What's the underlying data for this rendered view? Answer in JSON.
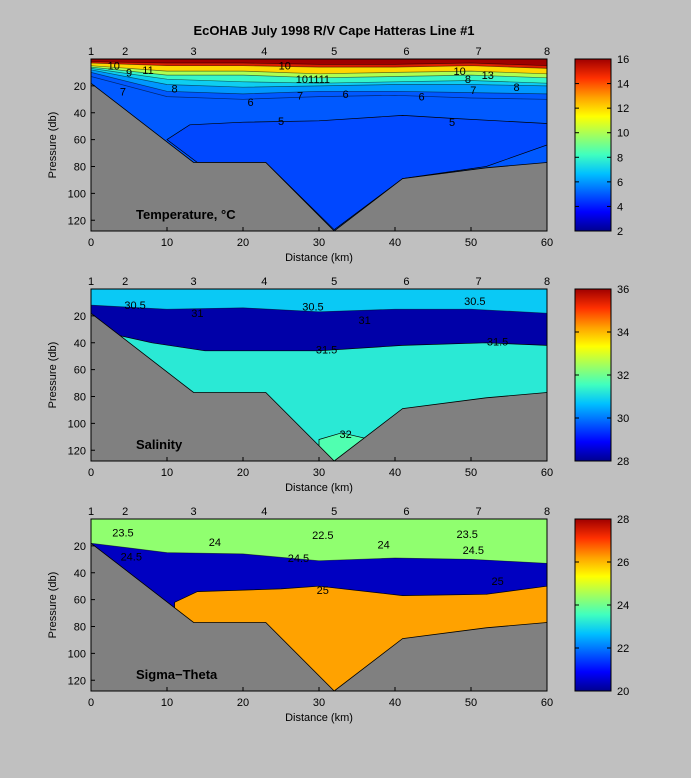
{
  "title": "EcOHAB   July 1998   R/V Cape Hatteras   Line #1",
  "colors": {
    "background": "#c0c0c0",
    "bathymetry": "#808080",
    "colormap": [
      "#00008f",
      "#0000ff",
      "#0060ff",
      "#00c0ff",
      "#40ffbf",
      "#a0ff60",
      "#ffff00",
      "#ffa000",
      "#ff3000",
      "#9f0000"
    ]
  },
  "chart_data": [
    {
      "type": "heatmap",
      "panel_label": "Temperature, °C",
      "xlabel": "Distance (km)",
      "ylabel": "Pressure (db)",
      "xlim": [
        0,
        60
      ],
      "ylim": [
        128,
        0
      ],
      "x_ticks": [
        "0",
        "10",
        "20",
        "30",
        "40",
        "50",
        "60"
      ],
      "y_ticks": [
        "20",
        "40",
        "60",
        "80",
        "100",
        "120"
      ],
      "stations": [
        {
          "label": "1",
          "x": 0
        },
        {
          "label": "2",
          "x": 4.5
        },
        {
          "label": "3",
          "x": 13.5
        },
        {
          "label": "4",
          "x": 22.8
        },
        {
          "label": "5",
          "x": 32
        },
        {
          "label": "6",
          "x": 41.5
        },
        {
          "label": "7",
          "x": 51
        },
        {
          "label": "8",
          "x": 60
        }
      ],
      "colorbar": {
        "min": 2,
        "max": 16,
        "ticks": [
          "2",
          "4",
          "6",
          "8",
          "10",
          "12",
          "14",
          "16"
        ]
      },
      "layers": [
        {
          "value": 5,
          "depth": [
            [
              0,
              13
            ],
            [
              10,
              28
            ],
            [
              20,
              30
            ],
            [
              30,
              28
            ],
            [
              40,
              27
            ],
            [
              50,
              29
            ],
            [
              60,
              30
            ]
          ]
        },
        {
          "value": 6,
          "depth": [
            [
              0,
              10
            ],
            [
              10,
              24
            ],
            [
              20,
              26
            ],
            [
              30,
              24
            ],
            [
              40,
              24
            ],
            [
              50,
              25
            ],
            [
              60,
              26
            ]
          ]
        },
        {
          "value": 7,
          "depth": [
            [
              0,
              8
            ],
            [
              10,
              19
            ],
            [
              20,
              21
            ],
            [
              30,
              20
            ],
            [
              40,
              19
            ],
            [
              50,
              19
            ],
            [
              60,
              20
            ]
          ]
        },
        {
          "value": 8,
          "depth": [
            [
              0,
              7
            ],
            [
              10,
              15
            ],
            [
              20,
              17
            ],
            [
              30,
              18
            ],
            [
              40,
              17
            ],
            [
              50,
              16
            ],
            [
              60,
              18
            ]
          ]
        },
        {
          "value": 10,
          "depth": [
            [
              0,
              6
            ],
            [
              10,
              12
            ],
            [
              20,
              12
            ],
            [
              30,
              14
            ],
            [
              40,
              13
            ],
            [
              50,
              12
            ],
            [
              60,
              14
            ]
          ]
        },
        {
          "value": 12,
          "depth": [
            [
              0,
              5
            ],
            [
              10,
              9
            ],
            [
              20,
              9
            ],
            [
              30,
              11
            ],
            [
              40,
              10
            ],
            [
              50,
              9
            ],
            [
              60,
              11
            ]
          ]
        },
        {
          "value": 15,
          "depth": [
            [
              0,
              3
            ],
            [
              10,
              5
            ],
            [
              20,
              5
            ],
            [
              30,
              6
            ],
            [
              40,
              6
            ],
            [
              50,
              5
            ],
            [
              60,
              7
            ]
          ]
        },
        {
          "value": 16,
          "depth": [
            [
              0,
              2
            ],
            [
              10,
              3
            ],
            [
              20,
              3
            ],
            [
              30,
              4
            ],
            [
              40,
              4
            ],
            [
              50,
              3
            ],
            [
              60,
              5
            ]
          ]
        }
      ],
      "deep": [
        {
          "value": 4.7,
          "poly": [
            [
              10,
              60
            ],
            [
              13,
              49
            ],
            [
              20,
              47
            ],
            [
              30,
              46
            ],
            [
              41,
              42
            ],
            [
              47,
              44
            ],
            [
              60,
              48
            ],
            [
              60,
              64
            ],
            [
              52,
              80
            ],
            [
              41,
              89
            ],
            [
              32,
              127
            ],
            [
              23,
              77
            ],
            [
              14,
              77
            ]
          ]
        }
      ],
      "labels": [
        {
          "text": "10",
          "x": 3,
          "y": 5
        },
        {
          "text": "9",
          "x": 5,
          "y": 10
        },
        {
          "text": "11",
          "x": 7.5,
          "y": 8
        },
        {
          "text": "7",
          "x": 4.2,
          "y": 24
        },
        {
          "text": "8",
          "x": 11,
          "y": 22
        },
        {
          "text": "6",
          "x": 21,
          "y": 32
        },
        {
          "text": "10",
          "x": 25.5,
          "y": 5
        },
        {
          "text": "101111",
          "x": 29.2,
          "y": 15
        },
        {
          "text": "7",
          "x": 27.5,
          "y": 27
        },
        {
          "text": "6",
          "x": 33.5,
          "y": 26
        },
        {
          "text": "5",
          "x": 25,
          "y": 46
        },
        {
          "text": "6",
          "x": 43.5,
          "y": 28
        },
        {
          "text": "10",
          "x": 48.5,
          "y": 9
        },
        {
          "text": "8",
          "x": 49.6,
          "y": 15
        },
        {
          "text": "13",
          "x": 52.2,
          "y": 12
        },
        {
          "text": "7",
          "x": 50.3,
          "y": 23
        },
        {
          "text": "8",
          "x": 56,
          "y": 21
        },
        {
          "text": "5",
          "x": 47.5,
          "y": 47
        }
      ]
    },
    {
      "type": "heatmap",
      "panel_label": "Salinity",
      "xlabel": "Distance (km)",
      "ylabel": "Pressure (db)",
      "xlim": [
        0,
        60
      ],
      "ylim": [
        128,
        0
      ],
      "x_ticks": [
        "0",
        "10",
        "20",
        "30",
        "40",
        "50",
        "60"
      ],
      "y_ticks": [
        "20",
        "40",
        "60",
        "80",
        "100",
        "120"
      ],
      "stations": [
        {
          "label": "1",
          "x": 0
        },
        {
          "label": "2",
          "x": 4.5
        },
        {
          "label": "3",
          "x": 13.5
        },
        {
          "label": "4",
          "x": 22.8
        },
        {
          "label": "5",
          "x": 32
        },
        {
          "label": "6",
          "x": 41.5
        },
        {
          "label": "7",
          "x": 51
        },
        {
          "label": "8",
          "x": 60
        }
      ],
      "colorbar": {
        "min": 28,
        "max": 36,
        "ticks": [
          "28",
          "30",
          "32",
          "34",
          "36"
        ]
      },
      "layers": [
        {
          "value": 28.2,
          "depth": [
            [
              0,
              4
            ],
            [
              10,
              6
            ],
            [
              20,
              5
            ],
            [
              30,
              6
            ],
            [
              40,
              5
            ],
            [
              50,
              5
            ],
            [
              60,
              6
            ]
          ]
        },
        {
          "value": 29.4,
          "depth": [
            [
              0,
              7
            ],
            [
              10,
              9
            ],
            [
              20,
              8
            ],
            [
              30,
              10
            ],
            [
              40,
              9
            ],
            [
              50,
              9
            ],
            [
              60,
              10
            ]
          ]
        },
        {
          "value": 30.3,
          "depth": [
            [
              0,
              9
            ],
            [
              10,
              12
            ],
            [
              20,
              11
            ],
            [
              30,
              13
            ],
            [
              40,
              12
            ],
            [
              50,
              12
            ],
            [
              60,
              13
            ]
          ]
        },
        {
          "value": 30.8,
          "depth": [
            [
              0,
              12
            ],
            [
              10,
              15
            ],
            [
              20,
              14
            ],
            [
              30,
              17
            ],
            [
              40,
              15
            ],
            [
              50,
              15
            ],
            [
              60,
              18
            ]
          ]
        }
      ],
      "deep": [
        {
          "value": 31.25,
          "poly": [
            [
              0,
              30
            ],
            [
              8,
              40
            ],
            [
              15,
              46
            ],
            [
              30,
              46
            ],
            [
              41,
              42
            ],
            [
              52,
              40
            ],
            [
              60,
              42
            ],
            [
              60,
              128
            ],
            [
              0,
              128
            ]
          ]
        },
        {
          "value": 31.7,
          "poly": [
            [
              30,
              112
            ],
            [
              33,
              107
            ],
            [
              36,
              111
            ],
            [
              36,
              128
            ],
            [
              30,
              128
            ]
          ]
        }
      ],
      "labels": [
        {
          "text": "30.5",
          "x": 5.8,
          "y": 12
        },
        {
          "text": "31",
          "x": 14,
          "y": 18
        },
        {
          "text": "31",
          "x": 36,
          "y": 23
        },
        {
          "text": "31.5",
          "x": 31,
          "y": 45
        },
        {
          "text": "31.5",
          "x": 53.5,
          "y": 39
        },
        {
          "text": "32",
          "x": 33.5,
          "y": 108
        },
        {
          "text": "30.5",
          "x": 29.2,
          "y": 13
        },
        {
          "text": "30.5",
          "x": 50.5,
          "y": 9
        }
      ]
    },
    {
      "type": "heatmap",
      "panel_label": "Sigma−Theta",
      "xlabel": "Distance (km)",
      "ylabel": "Pressure (db)",
      "xlim": [
        0,
        60
      ],
      "ylim": [
        128,
        0
      ],
      "x_ticks": [
        "0",
        "10",
        "20",
        "30",
        "40",
        "50",
        "60"
      ],
      "y_ticks": [
        "20",
        "40",
        "60",
        "80",
        "100",
        "120"
      ],
      "stations": [
        {
          "label": "1",
          "x": 0
        },
        {
          "label": "2",
          "x": 4.5
        },
        {
          "label": "3",
          "x": 13.5
        },
        {
          "label": "4",
          "x": 22.8
        },
        {
          "label": "5",
          "x": 32
        },
        {
          "label": "6",
          "x": 41.5
        },
        {
          "label": "7",
          "x": 51
        },
        {
          "label": "8",
          "x": 60
        }
      ],
      "colorbar": {
        "min": 20,
        "max": 28,
        "ticks": [
          "20",
          "22",
          "24",
          "26",
          "28"
        ]
      },
      "layers": [
        {
          "value": 20.4,
          "depth": [
            [
              0,
              3
            ],
            [
              10,
              4
            ],
            [
              20,
              4
            ],
            [
              30,
              5
            ],
            [
              40,
              5
            ],
            [
              50,
              4
            ],
            [
              60,
              5
            ]
          ]
        },
        {
          "value": 21.6,
          "depth": [
            [
              0,
              6
            ],
            [
              10,
              8
            ],
            [
              20,
              8
            ],
            [
              30,
              9
            ],
            [
              40,
              8
            ],
            [
              50,
              8
            ],
            [
              60,
              9
            ]
          ]
        },
        {
          "value": 22.6,
          "depth": [
            [
              0,
              9
            ],
            [
              10,
              12
            ],
            [
              20,
              11
            ],
            [
              30,
              13
            ],
            [
              40,
              12
            ],
            [
              50,
              12
            ],
            [
              60,
              14
            ]
          ]
        },
        {
          "value": 23.6,
          "depth": [
            [
              0,
              14
            ],
            [
              10,
              18
            ],
            [
              20,
              16
            ],
            [
              30,
              21
            ],
            [
              40,
              19
            ],
            [
              50,
              18
            ],
            [
              60,
              22
            ]
          ]
        },
        {
          "value": 24.3,
          "depth": [
            [
              0,
              18
            ],
            [
              10,
              25
            ],
            [
              20,
              26
            ],
            [
              30,
              31
            ],
            [
              40,
              29
            ],
            [
              50,
              30
            ],
            [
              60,
              33
            ]
          ]
        }
      ],
      "deep": [
        {
          "value": 26.2,
          "poly": [
            [
              11,
              62
            ],
            [
              14,
              54
            ],
            [
              25,
              52
            ],
            [
              30,
              50
            ],
            [
              41,
              57
            ],
            [
              52,
              56
            ],
            [
              60,
              50
            ],
            [
              60,
              128
            ],
            [
              11,
              128
            ]
          ]
        }
      ],
      "labels": [
        {
          "text": "23.5",
          "x": 4.2,
          "y": 10
        },
        {
          "text": "24.5",
          "x": 5.3,
          "y": 28
        },
        {
          "text": "24",
          "x": 16.3,
          "y": 17
        },
        {
          "text": "24.5",
          "x": 27.3,
          "y": 29
        },
        {
          "text": "25",
          "x": 30.5,
          "y": 53
        },
        {
          "text": "24",
          "x": 38.5,
          "y": 19
        },
        {
          "text": "24.5",
          "x": 50.3,
          "y": 23
        },
        {
          "text": "25",
          "x": 53.5,
          "y": 46
        },
        {
          "text": "23.5",
          "x": 49.5,
          "y": 11
        },
        {
          "text": "22.5",
          "x": 30.5,
          "y": 12
        }
      ]
    }
  ]
}
